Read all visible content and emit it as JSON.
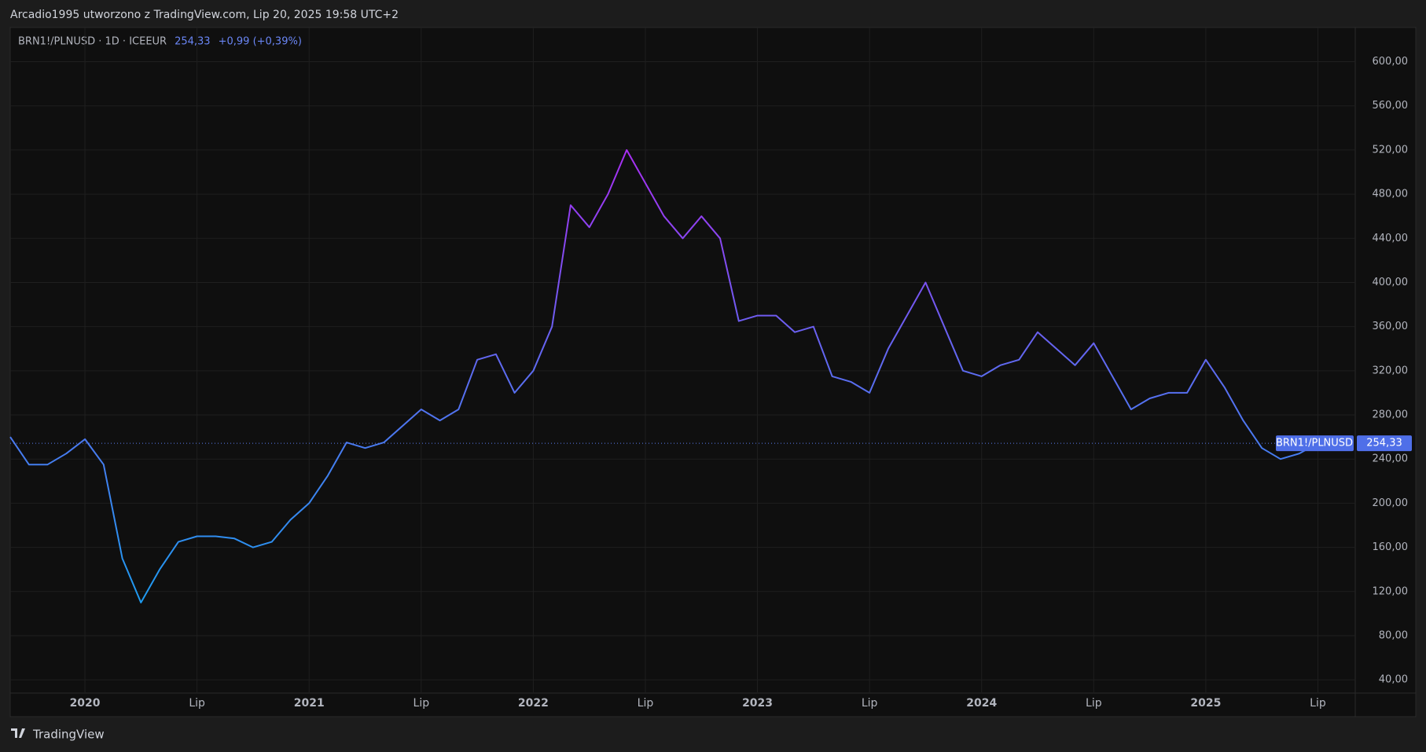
{
  "header": {
    "caption": "Arcadio1995 utworzono z TradingView.com, Lip 20, 2025 19:58 UTC+2"
  },
  "footer": {
    "brand": "TradingView"
  },
  "chart_data": {
    "type": "line",
    "legend": "BRN1!/PLNUSD · 1D · ICEEUR",
    "change": "+0,99 (+0,39%)",
    "last_price": {
      "value": 254.33,
      "label": "254,33"
    },
    "x": [
      "2019-09",
      "2019-10",
      "2019-11",
      "2019-12",
      "2020-01",
      "2020-02",
      "2020-03",
      "2020-04",
      "2020-05",
      "2020-06",
      "2020-07",
      "2020-08",
      "2020-09",
      "2020-10",
      "2020-11",
      "2020-12",
      "2021-01",
      "2021-02",
      "2021-03",
      "2021-04",
      "2021-05",
      "2021-06",
      "2021-07",
      "2021-08",
      "2021-09",
      "2021-10",
      "2021-11",
      "2021-12",
      "2022-01",
      "2022-02",
      "2022-03",
      "2022-04",
      "2022-05",
      "2022-06",
      "2022-07",
      "2022-08",
      "2022-09",
      "2022-10",
      "2022-11",
      "2022-12",
      "2023-01",
      "2023-02",
      "2023-03",
      "2023-04",
      "2023-05",
      "2023-06",
      "2023-07",
      "2023-08",
      "2023-09",
      "2023-10",
      "2023-11",
      "2023-12",
      "2024-01",
      "2024-02",
      "2024-03",
      "2024-04",
      "2024-05",
      "2024-06",
      "2024-07",
      "2024-08",
      "2024-09",
      "2024-10",
      "2024-11",
      "2024-12",
      "2025-01",
      "2025-02",
      "2025-03",
      "2025-04",
      "2025-05",
      "2025-06",
      "2025-07"
    ],
    "series": [
      {
        "name": "BRN1!/PLNUSD",
        "values": [
          260,
          235,
          235,
          245,
          258,
          235,
          150,
          110,
          140,
          165,
          170,
          170,
          168,
          160,
          165,
          185,
          200,
          225,
          255,
          250,
          255,
          270,
          285,
          275,
          285,
          330,
          335,
          300,
          320,
          360,
          470,
          450,
          480,
          520,
          490,
          460,
          440,
          460,
          440,
          365,
          370,
          370,
          355,
          360,
          315,
          310,
          300,
          340,
          370,
          400,
          360,
          320,
          315,
          325,
          330,
          355,
          340,
          325,
          345,
          315,
          285,
          295,
          300,
          300,
          330,
          305,
          275,
          250,
          240,
          245,
          254.33
        ]
      }
    ],
    "gradient_colors": [
      "#1e9bf0",
      "#5b6cf0",
      "#a82ef2"
    ],
    "xlim": [
      "2019-09",
      "2025-09"
    ],
    "xticks": [
      {
        "value": "2020-01",
        "label": "2020"
      },
      {
        "value": "2020-07",
        "label": "Lip"
      },
      {
        "value": "2021-01",
        "label": "2021"
      },
      {
        "value": "2021-07",
        "label": "Lip"
      },
      {
        "value": "2022-01",
        "label": "2022"
      },
      {
        "value": "2022-07",
        "label": "Lip"
      },
      {
        "value": "2023-01",
        "label": "2023"
      },
      {
        "value": "2023-07",
        "label": "Lip"
      },
      {
        "value": "2024-01",
        "label": "2024"
      },
      {
        "value": "2024-07",
        "label": "Lip"
      },
      {
        "value": "2025-01",
        "label": "2025"
      },
      {
        "value": "2025-07",
        "label": "Lip"
      }
    ],
    "ylim": [
      28,
      631
    ],
    "yticks": [
      {
        "value": 40,
        "label": "40,00"
      },
      {
        "value": 80,
        "label": "80,00"
      },
      {
        "value": 120,
        "label": "120,00"
      },
      {
        "value": 160,
        "label": "160,00"
      },
      {
        "value": 200,
        "label": "200,00"
      },
      {
        "value": 240,
        "label": "240,00"
      },
      {
        "value": 280,
        "label": "280,00"
      },
      {
        "value": 320,
        "label": "320,00"
      },
      {
        "value": 360,
        "label": "360,00"
      },
      {
        "value": 400,
        "label": "400,00"
      },
      {
        "value": 440,
        "label": "440,00"
      },
      {
        "value": 480,
        "label": "480,00"
      },
      {
        "value": 520,
        "label": "520,00"
      },
      {
        "value": 560,
        "label": "560,00"
      },
      {
        "value": 600,
        "label": "600,00"
      }
    ],
    "grid": true
  }
}
